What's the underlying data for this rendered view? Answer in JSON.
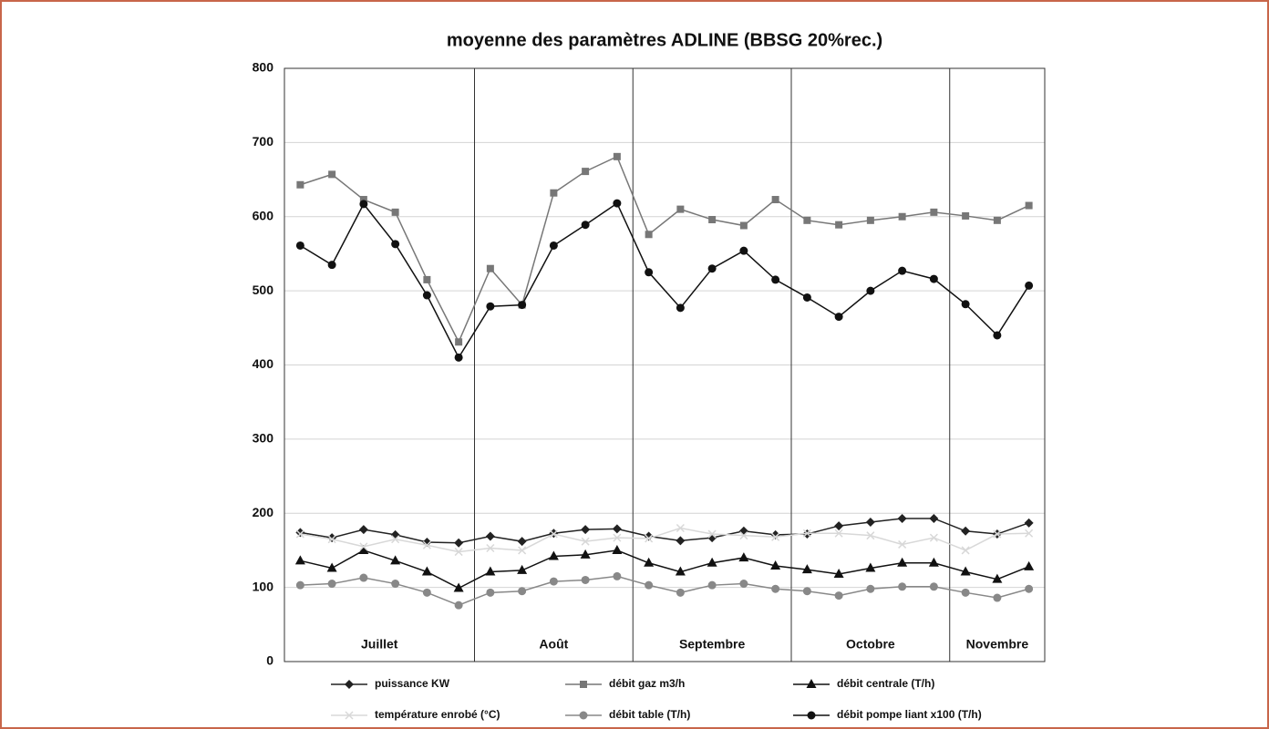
{
  "chart_data": {
    "type": "line",
    "title": "moyenne des paramètres ADLINE (BBSG 20%rec.)",
    "groups": [
      {
        "label": "Juillet",
        "categories": [
          null,
          null,
          null,
          null,
          null,
          null
        ]
      },
      {
        "label": "Août",
        "categories": [
          null,
          null,
          null,
          null,
          null
        ]
      },
      {
        "label": "Septembre",
        "categories": [
          null,
          null,
          null,
          null,
          null
        ]
      },
      {
        "label": "Octobre",
        "categories": [
          null,
          null,
          null,
          null,
          null
        ]
      },
      {
        "label": "Novembre",
        "categories": [
          null,
          null,
          null
        ]
      }
    ],
    "ylim": [
      0,
      800
    ],
    "yticks": [
      0,
      100,
      200,
      300,
      400,
      500,
      600,
      700,
      800
    ],
    "grid": true,
    "series": [
      {
        "name": "puissance KW",
        "color": "#222222",
        "marker": "diamond",
        "values": [
          174,
          167,
          178,
          171,
          161,
          160,
          169,
          162,
          173,
          178,
          179,
          169,
          163,
          167,
          176,
          171,
          172,
          183,
          188,
          193,
          193,
          176,
          172,
          187
        ]
      },
      {
        "name": "débit gaz m3/h",
        "color": "#777777",
        "marker": "square",
        "values": [
          643,
          657,
          623,
          606,
          515,
          431,
          530,
          481,
          632,
          661,
          681,
          576,
          610,
          596,
          588,
          623,
          595,
          589,
          595,
          600,
          606,
          601,
          595,
          615
        ]
      },
      {
        "name": "débit centrale (T/h)",
        "color": "#111111",
        "marker": "triangle",
        "values": [
          136,
          126,
          150,
          136,
          121,
          99,
          121,
          123,
          142,
          144,
          150,
          133,
          121,
          133,
          140,
          129,
          124,
          118,
          126,
          133,
          133,
          121,
          111,
          128
        ]
      },
      {
        "name": "température enrobé (°C)",
        "color": "#d8d8d8",
        "marker": "cross",
        "values": [
          172,
          165,
          155,
          165,
          157,
          148,
          153,
          150,
          172,
          162,
          167,
          166,
          180,
          172,
          170,
          168,
          173,
          173,
          170,
          158,
          167,
          150,
          172,
          173
        ]
      },
      {
        "name": "débit table (T/h)",
        "color": "#888888",
        "marker": "circle",
        "values": [
          103,
          105,
          113,
          105,
          93,
          76,
          93,
          95,
          108,
          110,
          115,
          103,
          93,
          103,
          105,
          98,
          95,
          89,
          98,
          101,
          101,
          93,
          86,
          98
        ]
      },
      {
        "name": "débit pompe liant x100 (T/h)",
        "color": "#111111",
        "marker": "circle",
        "values": [
          561,
          535,
          617,
          563,
          494,
          410,
          479,
          481,
          561,
          589,
          618,
          525,
          477,
          530,
          554,
          515,
          491,
          465,
          500,
          527,
          516,
          482,
          440,
          507
        ]
      }
    ]
  }
}
